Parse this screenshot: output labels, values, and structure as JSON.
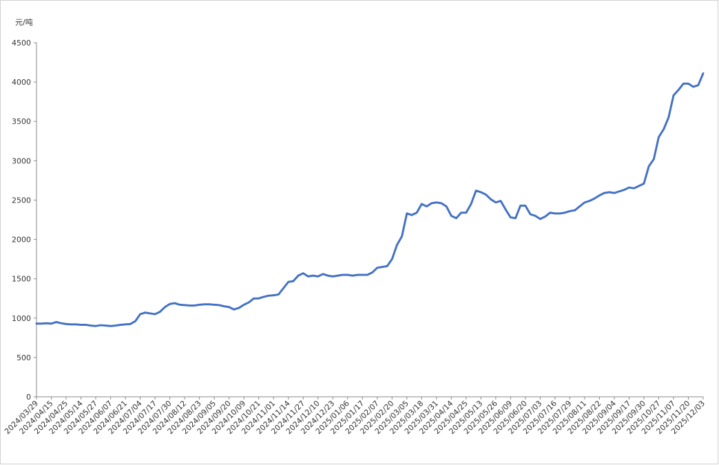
{
  "chart_data": {
    "type": "line",
    "y_label": "元/吨",
    "categories": [
      "2024/03/29",
      null,
      null,
      "2024/04/15",
      null,
      null,
      "2024/04/25",
      null,
      null,
      "2024/05/14",
      null,
      null,
      "2024/05/27",
      null,
      null,
      "2024/06/07",
      null,
      null,
      "2024/06/21",
      null,
      null,
      "2024/07/04",
      null,
      null,
      "2024/07/17",
      null,
      null,
      "2024/07/30",
      null,
      null,
      "2024/08/12",
      null,
      null,
      "2024/08/23",
      null,
      null,
      "2024/09/05",
      null,
      null,
      "2024/09/20",
      null,
      null,
      "2024/10/09",
      null,
      null,
      "2024/10/21",
      null,
      null,
      "2024/11/01",
      null,
      null,
      "2024/11/14",
      null,
      null,
      "2024/11/27",
      null,
      null,
      "2024/12/10",
      null,
      null,
      "2024/12/23",
      null,
      null,
      "2025/01/06",
      null,
      null,
      "2025/01/17",
      null,
      null,
      "2025/02/07",
      null,
      null,
      "2025/02/20",
      null,
      null,
      "2025/03/05",
      null,
      null,
      "2025/03/18",
      null,
      null,
      "2025/03/31",
      null,
      null,
      "2025/04/14",
      null,
      null,
      "2025/04/25",
      null,
      null,
      "2025/05/13",
      null,
      null,
      "2025/05/26",
      null,
      null,
      "2025/06/09",
      null,
      null,
      "2025/06/20",
      null,
      null,
      "2025/07/03",
      null,
      null,
      "2025/07/16",
      null,
      null,
      "2025/07/29",
      null,
      null,
      "2025/08/11",
      null,
      null,
      "2025/08/22",
      null,
      null,
      "2025/09/04",
      null,
      null,
      "2025/09/17",
      null,
      null,
      "2025/09/30",
      null,
      null,
      "2025/10/27",
      null,
      null,
      "2025/11/07",
      null,
      null,
      "2025/11/20",
      null,
      null,
      "2025/12/03"
    ],
    "values": [
      930,
      930,
      935,
      930,
      950,
      935,
      925,
      920,
      920,
      915,
      915,
      905,
      900,
      910,
      905,
      900,
      905,
      915,
      920,
      925,
      960,
      1050,
      1070,
      1060,
      1050,
      1080,
      1140,
      1180,
      1190,
      1170,
      1165,
      1160,
      1160,
      1170,
      1175,
      1175,
      1170,
      1165,
      1150,
      1140,
      1110,
      1130,
      1170,
      1200,
      1250,
      1250,
      1270,
      1285,
      1290,
      1300,
      1380,
      1460,
      1470,
      1540,
      1570,
      1530,
      1540,
      1530,
      1560,
      1540,
      1530,
      1540,
      1550,
      1550,
      1540,
      1550,
      1550,
      1550,
      1580,
      1640,
      1650,
      1660,
      1750,
      1930,
      2040,
      2330,
      2310,
      2340,
      2450,
      2420,
      2460,
      2470,
      2460,
      2420,
      2300,
      2270,
      2340,
      2340,
      2450,
      2620,
      2600,
      2570,
      2510,
      2470,
      2490,
      2380,
      2280,
      2270,
      2430,
      2430,
      2320,
      2300,
      2260,
      2290,
      2340,
      2330,
      2330,
      2340,
      2360,
      2370,
      2420,
      2470,
      2490,
      2520,
      2560,
      2590,
      2600,
      2590,
      2610,
      2630,
      2660,
      2650,
      2680,
      2710,
      2930,
      3020,
      3300,
      3400,
      3550,
      3830,
      3900,
      3980,
      3980,
      3940,
      3960,
      4110
    ],
    "color": "#4472c4",
    "ylim": [
      0,
      4500
    ],
    "yticks": [
      0,
      500,
      1000,
      1500,
      2000,
      2500,
      3000,
      3500,
      4000,
      4500
    ],
    "grid": false
  }
}
